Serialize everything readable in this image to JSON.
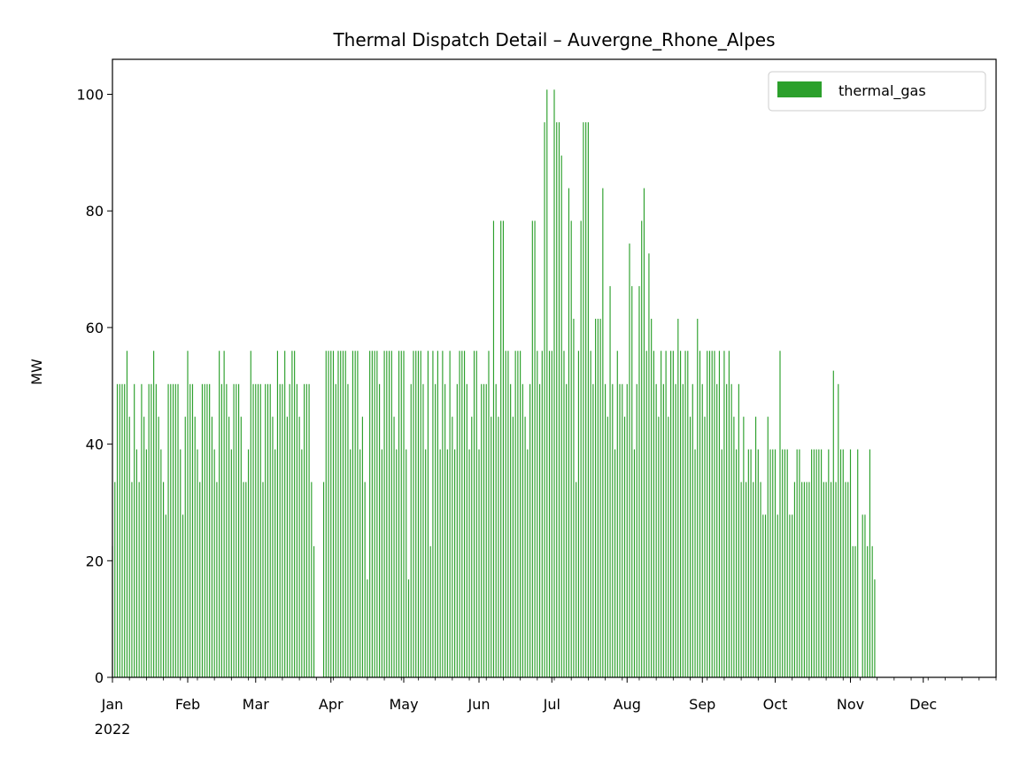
{
  "chart_data": {
    "type": "area",
    "title": "Thermal Dispatch Detail – Auvergne_Rhone_Alpes",
    "xlabel": "",
    "ylabel": "MW",
    "xlim": [
      "2022-01-01",
      "2022-12-31"
    ],
    "ylim": [
      0,
      106
    ],
    "yticks": [
      0,
      20,
      40,
      60,
      80,
      100
    ],
    "xticks": [
      {
        "label": "Jan",
        "date": "2022-01-01"
      },
      {
        "label": "Feb",
        "date": "2022-02-01"
      },
      {
        "label": "Mar",
        "date": "2022-03-01"
      },
      {
        "label": "Apr",
        "date": "2022-04-01"
      },
      {
        "label": "May",
        "date": "2022-05-01"
      },
      {
        "label": "Jun",
        "date": "2022-06-01"
      },
      {
        "label": "Jul",
        "date": "2022-07-01"
      },
      {
        "label": "Aug",
        "date": "2022-08-01"
      },
      {
        "label": "Sep",
        "date": "2022-09-01"
      },
      {
        "label": "Oct",
        "date": "2022-10-01"
      },
      {
        "label": "Nov",
        "date": "2022-11-01"
      },
      {
        "label": "Dec",
        "date": "2022-12-01"
      }
    ],
    "year_label": "2022",
    "legend": {
      "placement": "top-right",
      "entries": [
        "thermal_gas"
      ]
    },
    "grid": false,
    "series": [
      {
        "name": "thermal_gas",
        "color": "#2ca02c",
        "sampling": "daily peak",
        "x_start": "2022-01-01",
        "values": [
          22.5,
          33.5,
          50.3,
          50.3,
          50.3,
          50.3,
          56.0,
          44.7,
          33.5,
          50.3,
          39.1,
          33.5,
          50.3,
          44.7,
          39.1,
          50.3,
          50.3,
          56.0,
          50.3,
          44.7,
          39.1,
          33.5,
          27.9,
          50.3,
          50.3,
          50.3,
          50.3,
          50.3,
          39.1,
          27.9,
          44.7,
          56.0,
          50.3,
          50.3,
          44.7,
          39.1,
          33.5,
          50.3,
          50.3,
          50.3,
          50.3,
          44.7,
          39.1,
          33.5,
          56.0,
          50.3,
          56.0,
          50.3,
          44.7,
          39.1,
          50.3,
          50.3,
          50.3,
          44.7,
          33.5,
          33.5,
          39.1,
          56.0,
          50.3,
          50.3,
          50.3,
          50.3,
          33.5,
          50.3,
          50.3,
          50.3,
          44.7,
          39.1,
          56.0,
          50.3,
          50.3,
          56.0,
          44.7,
          50.3,
          56.0,
          56.0,
          50.3,
          44.7,
          39.1,
          50.3,
          50.3,
          50.3,
          33.5,
          22.5,
          0.0,
          0.0,
          0.0,
          33.5,
          56.0,
          56.0,
          56.0,
          56.0,
          50.3,
          56.0,
          56.0,
          56.0,
          56.0,
          50.3,
          39.1,
          56.0,
          56.0,
          56.0,
          39.1,
          44.7,
          33.5,
          16.8,
          56.0,
          56.0,
          56.0,
          56.0,
          50.3,
          39.1,
          56.0,
          56.0,
          56.0,
          56.0,
          44.7,
          39.1,
          56.0,
          56.0,
          56.0,
          39.1,
          16.8,
          50.3,
          56.0,
          56.0,
          56.0,
          56.0,
          50.3,
          39.1,
          56.0,
          22.5,
          56.0,
          50.3,
          56.0,
          39.1,
          56.0,
          50.3,
          39.1,
          56.0,
          44.7,
          39.1,
          50.3,
          56.0,
          56.0,
          56.0,
          50.3,
          39.1,
          44.7,
          56.0,
          56.0,
          39.1,
          50.3,
          50.3,
          50.3,
          56.0,
          44.7,
          78.3,
          50.3,
          44.7,
          78.3,
          78.3,
          56.0,
          56.0,
          50.3,
          44.7,
          56.0,
          56.0,
          56.0,
          50.3,
          44.7,
          39.1,
          50.3,
          78.3,
          78.3,
          56.0,
          50.3,
          56.0,
          95.2,
          100.8,
          56.0,
          56.0,
          100.8,
          95.2,
          95.2,
          89.5,
          56.0,
          50.3,
          83.9,
          78.3,
          61.5,
          33.5,
          56.0,
          78.3,
          95.2,
          95.2,
          95.2,
          56.0,
          50.3,
          61.5,
          61.5,
          61.5,
          83.9,
          50.3,
          44.7,
          67.1,
          50.3,
          39.1,
          56.0,
          50.3,
          50.3,
          44.7,
          50.3,
          74.4,
          67.1,
          39.1,
          50.3,
          67.1,
          78.3,
          83.9,
          56.0,
          72.7,
          61.5,
          56.0,
          50.3,
          44.7,
          56.0,
          50.3,
          56.0,
          44.7,
          56.0,
          56.0,
          50.3,
          61.5,
          56.0,
          50.3,
          56.0,
          56.0,
          44.7,
          50.3,
          39.1,
          61.5,
          56.0,
          50.3,
          44.7,
          56.0,
          56.0,
          56.0,
          56.0,
          50.3,
          56.0,
          39.1,
          56.0,
          50.3,
          56.0,
          50.3,
          44.7,
          39.1,
          50.3,
          33.5,
          44.7,
          33.5,
          39.1,
          39.1,
          33.5,
          44.7,
          39.1,
          33.5,
          27.9,
          27.9,
          44.7,
          39.1,
          39.1,
          39.1,
          27.9,
          56.0,
          39.1,
          39.1,
          39.1,
          27.9,
          27.9,
          33.5,
          39.1,
          39.1,
          33.5,
          33.5,
          33.5,
          33.5,
          39.1,
          39.1,
          39.1,
          39.1,
          39.1,
          33.5,
          33.5,
          39.1,
          33.5,
          52.6,
          33.5,
          50.3,
          39.1,
          39.1,
          33.5,
          33.5,
          39.1,
          22.5,
          22.5,
          39.1,
          0.0,
          27.9,
          27.9,
          22.5,
          39.1,
          22.5,
          16.8
        ]
      }
    ]
  }
}
